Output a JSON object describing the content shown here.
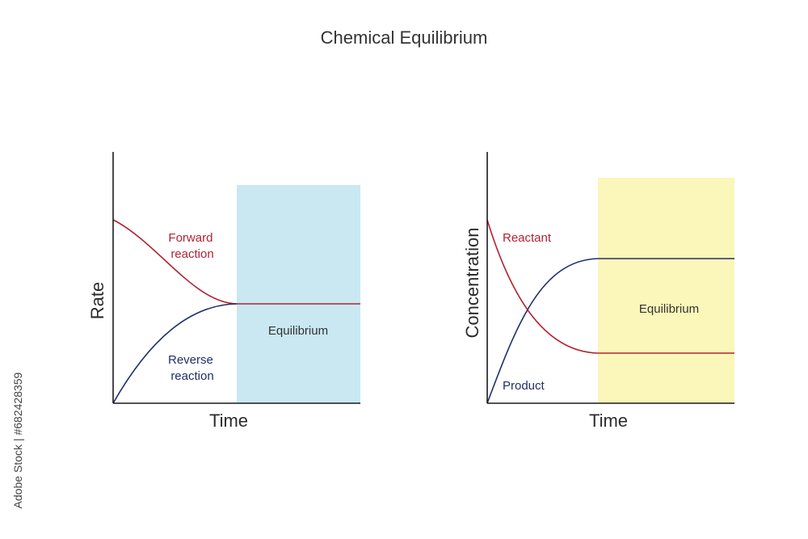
{
  "title": "Chemical Equilibrium",
  "colors": {
    "forward": "#b22234",
    "reverse": "#1f2f6b",
    "axis": "#1a1a1a",
    "equilibrium_line": "#1a1a1a",
    "rate_zone": "#c9e8f2",
    "concentration_zone": "#fbf6b9"
  },
  "rate_panel": {
    "ylabel": "Rate",
    "xlabel": "Time",
    "forward_label": [
      "Forward",
      "reaction"
    ],
    "reverse_label": [
      "Reverse",
      "reaction"
    ],
    "zone_label": "Equilibrium"
  },
  "concentration_panel": {
    "ylabel": "Concentration",
    "xlabel": "Time",
    "reactant_label": "Reactant",
    "product_label": "Product",
    "zone_label": "Equilibrium"
  },
  "watermark": "Adobe Stock | #682428359"
}
